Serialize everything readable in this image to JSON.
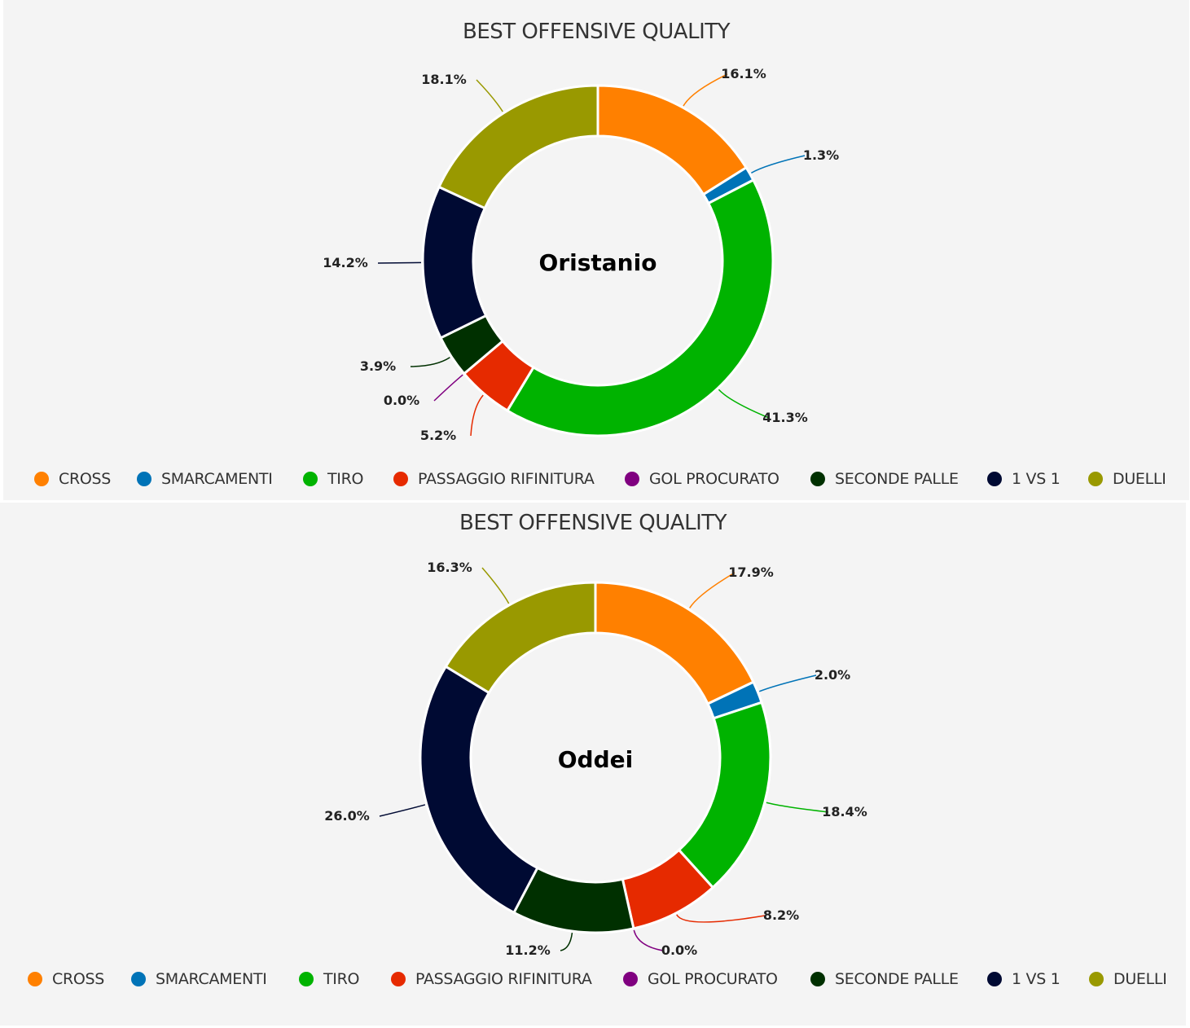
{
  "legend_labels": [
    "CROSS",
    "SMARCAMENTI",
    "TIRO",
    "PASSAGGIO RIFINITURA",
    "GOL PROCURATO",
    "SECONDE PALLE",
    "1 VS 1",
    "DUELLI"
  ],
  "colors": [
    "#ff8000",
    "#0073b7",
    "#00b300",
    "#e62a00",
    "#800080",
    "#003000",
    "#000a33",
    "#999900"
  ],
  "chart_data": [
    {
      "type": "pie",
      "title": "BEST OFFENSIVE QUALITY",
      "center_label": "Oristanio",
      "legend_position": "bottom",
      "categories": [
        "CROSS",
        "SMARCAMENTI",
        "TIRO",
        "PASSAGGIO RIFINITURA",
        "GOL PROCURATO",
        "SECONDE PALLE",
        "1 VS 1",
        "DUELLI"
      ],
      "values": [
        16.1,
        1.3,
        41.3,
        5.2,
        0.0,
        3.9,
        14.2,
        18.1
      ],
      "data_labels": [
        "16.1%",
        "1.3%",
        "41.3%",
        "5.2%",
        "0.0%",
        "3.9%",
        "14.2%",
        "18.1%"
      ]
    },
    {
      "type": "pie",
      "title": "BEST OFFENSIVE QUALITY",
      "center_label": "Oddei",
      "legend_position": "bottom",
      "categories": [
        "CROSS",
        "SMARCAMENTI",
        "TIRO",
        "PASSAGGIO RIFINITURA",
        "GOL PROCURATO",
        "SECONDE PALLE",
        "1 VS 1",
        "DUELLI"
      ],
      "values": [
        17.9,
        2.0,
        18.4,
        8.2,
        0.0,
        11.2,
        26.0,
        16.3
      ],
      "data_labels": [
        "17.9%",
        "2.0%",
        "18.4%",
        "8.2%",
        "0.0%",
        "11.2%",
        "26.0%",
        "16.3%"
      ]
    }
  ]
}
